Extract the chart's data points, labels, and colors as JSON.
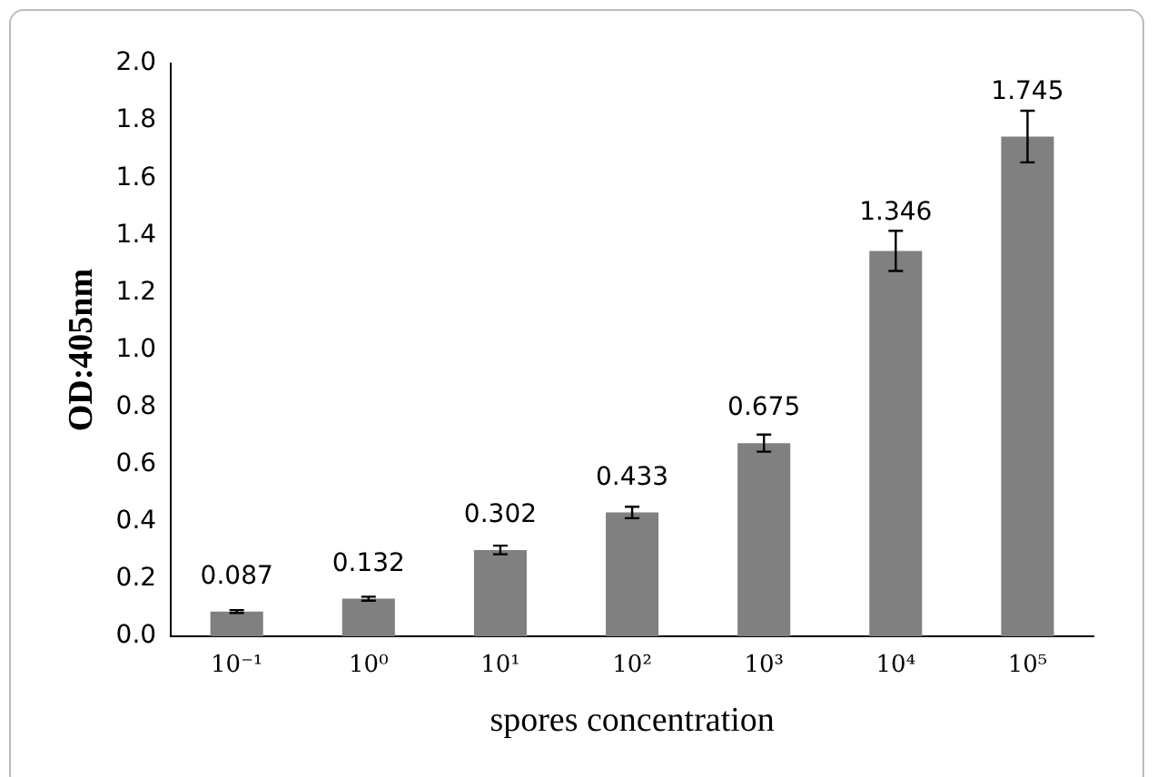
{
  "chart_data": {
    "type": "bar",
    "xlabel": "spores concentration",
    "ylabel": "OD:405nm",
    "categories": [
      "10⁻¹",
      "10⁰",
      "10¹",
      "10²",
      "10³",
      "10⁴",
      "10⁵"
    ],
    "values": [
      0.087,
      0.132,
      0.302,
      0.433,
      0.675,
      1.346,
      1.745
    ],
    "errors": [
      0.005,
      0.007,
      0.015,
      0.02,
      0.03,
      0.07,
      0.09
    ],
    "color": "#808080",
    "ylim": [
      0,
      2
    ],
    "yticks": [
      {
        "value": 0,
        "label": "0.0"
      },
      0.2,
      0.4,
      0.6,
      0.8,
      {
        "value": 1,
        "label": "1.0"
      },
      1.2,
      1.4,
      1.6,
      1.8,
      {
        "value": 2,
        "label": "2.0"
      }
    ],
    "data_labels": true,
    "grid": false,
    "legend": false
  }
}
